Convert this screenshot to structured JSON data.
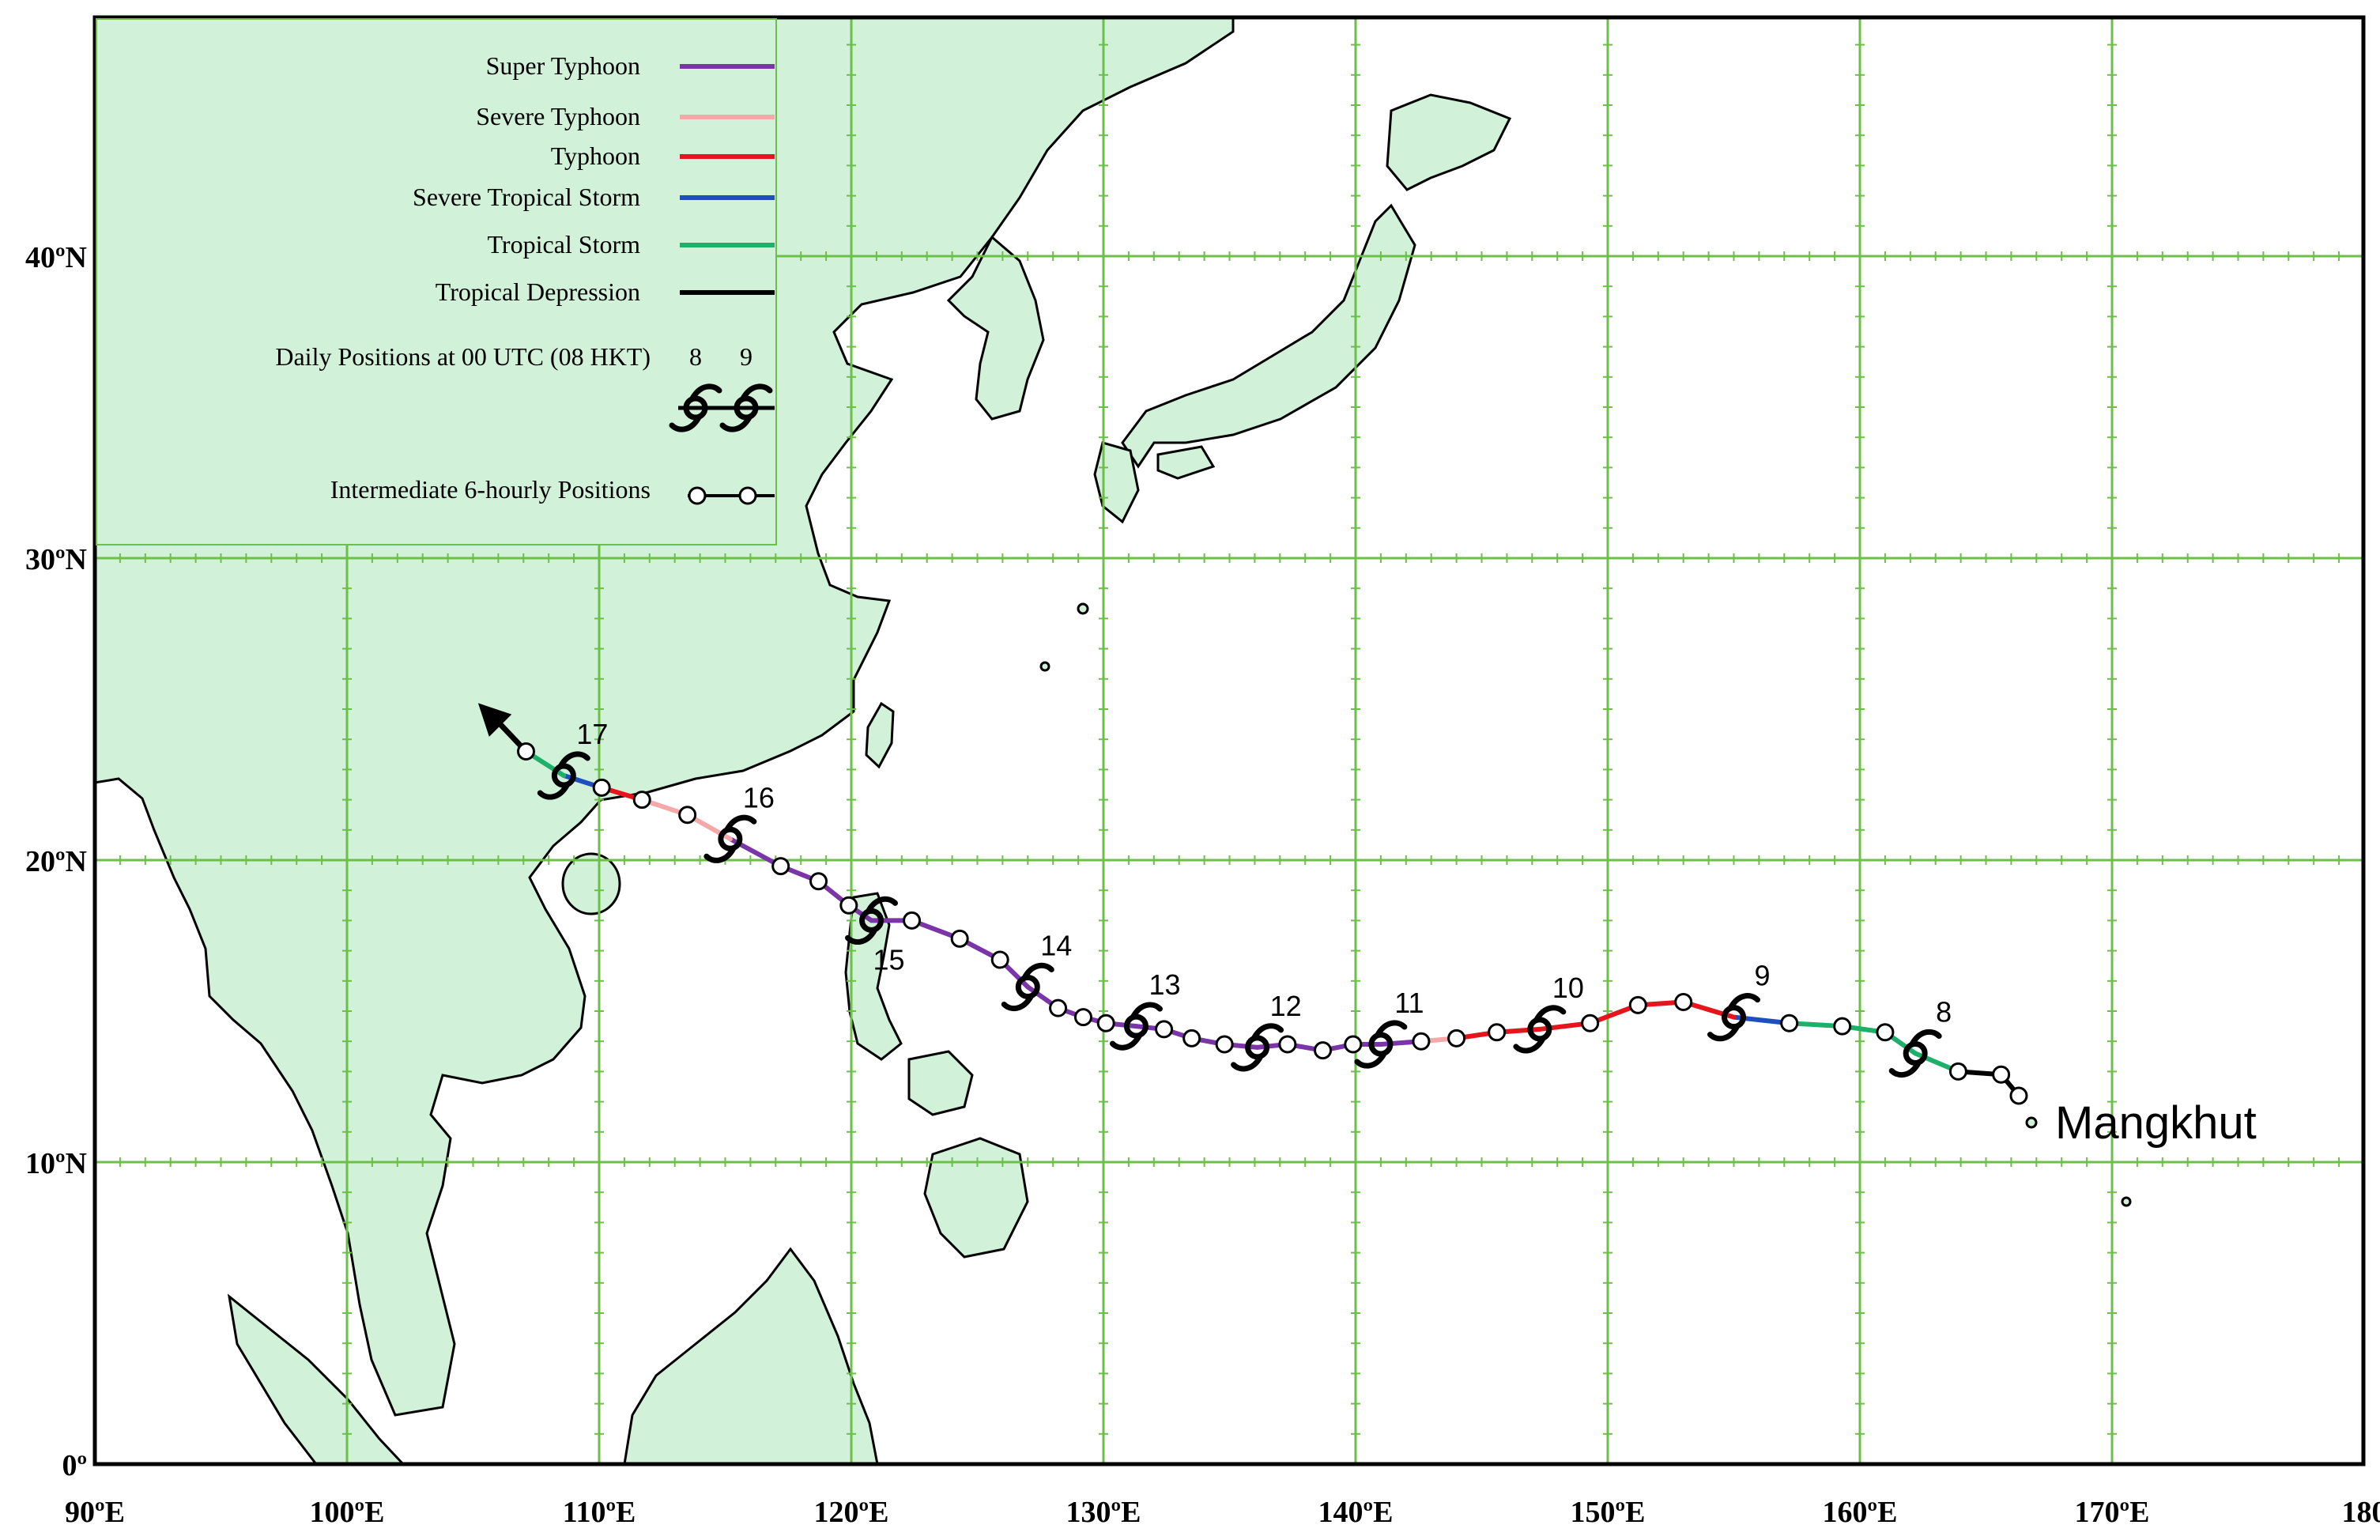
{
  "legend": {
    "items": [
      {
        "label": "Super Typhoon",
        "color": "#7B35A8"
      },
      {
        "label": "Severe Typhoon",
        "color": "#F4A9A8"
      },
      {
        "label": "Typhoon",
        "color": "#E8141B"
      },
      {
        "label": "Severe Tropical Storm",
        "color": "#1F4FBF"
      },
      {
        "label": "Tropical Storm",
        "color": "#1CB06A"
      },
      {
        "label": "Tropical Depression",
        "color": "#000000"
      }
    ],
    "daily_label": "Daily Positions at 00 UTC (08 HKT)",
    "daily_sample_1": "8",
    "daily_sample_2": "9",
    "intermediate_label": "Intermediate 6-hourly Positions"
  },
  "axes": {
    "lon_labels": [
      "90ºE",
      "100ºE",
      "110ºE",
      "120ºE",
      "130ºE",
      "140ºE",
      "150ºE",
      "160ºE",
      "170ºE",
      "180"
    ],
    "lat_labels": [
      "0º",
      "10ºN",
      "20ºN",
      "30ºN",
      "40ºN"
    ]
  },
  "storm_name": "Mangkhut",
  "track": {
    "points": [
      {
        "lon": 166.3,
        "lat": 12.2,
        "cat": "Tropical Depression"
      },
      {
        "lon": 165.6,
        "lat": 12.9,
        "cat": "Tropical Depression"
      },
      {
        "lon": 163.9,
        "lat": 13.0,
        "cat": "Tropical Depression"
      },
      {
        "lon": 162.2,
        "lat": 13.6,
        "cat": "Tropical Storm",
        "day": "8"
      },
      {
        "lon": 161.0,
        "lat": 14.3,
        "cat": "Tropical Storm"
      },
      {
        "lon": 159.3,
        "lat": 14.5,
        "cat": "Tropical Storm"
      },
      {
        "lon": 157.2,
        "lat": 14.6,
        "cat": "Tropical Storm"
      },
      {
        "lon": 155.0,
        "lat": 14.8,
        "cat": "Severe Tropical Storm",
        "day": "9"
      },
      {
        "lon": 153.0,
        "lat": 15.3,
        "cat": "Typhoon"
      },
      {
        "lon": 151.2,
        "lat": 15.2,
        "cat": "Typhoon"
      },
      {
        "lon": 149.3,
        "lat": 14.6,
        "cat": "Typhoon"
      },
      {
        "lon": 147.3,
        "lat": 14.4,
        "cat": "Typhoon",
        "day": "10"
      },
      {
        "lon": 145.6,
        "lat": 14.3,
        "cat": "Typhoon"
      },
      {
        "lon": 144.0,
        "lat": 14.1,
        "cat": "Typhoon"
      },
      {
        "lon": 142.6,
        "lat": 14.0,
        "cat": "Severe Typhoon"
      },
      {
        "lon": 141.0,
        "lat": 13.9,
        "cat": "Super Typhoon",
        "day": "11"
      },
      {
        "lon": 139.9,
        "lat": 13.9,
        "cat": "Super Typhoon"
      },
      {
        "lon": 138.7,
        "lat": 13.7,
        "cat": "Super Typhoon"
      },
      {
        "lon": 137.3,
        "lat": 13.9,
        "cat": "Super Typhoon"
      },
      {
        "lon": 136.1,
        "lat": 13.8,
        "cat": "Super Typhoon",
        "day": "12"
      },
      {
        "lon": 134.8,
        "lat": 13.9,
        "cat": "Super Typhoon"
      },
      {
        "lon": 133.5,
        "lat": 14.1,
        "cat": "Super Typhoon"
      },
      {
        "lon": 132.4,
        "lat": 14.4,
        "cat": "Super Typhoon"
      },
      {
        "lon": 131.3,
        "lat": 14.5,
        "cat": "Super Typhoon",
        "day": "13"
      },
      {
        "lon": 130.1,
        "lat": 14.6,
        "cat": "Super Typhoon"
      },
      {
        "lon": 129.2,
        "lat": 14.8,
        "cat": "Super Typhoon"
      },
      {
        "lon": 128.2,
        "lat": 15.1,
        "cat": "Super Typhoon"
      },
      {
        "lon": 127.0,
        "lat": 15.8,
        "cat": "Super Typhoon",
        "day": "14"
      },
      {
        "lon": 125.9,
        "lat": 16.7,
        "cat": "Super Typhoon"
      },
      {
        "lon": 124.3,
        "lat": 17.4,
        "cat": "Super Typhoon"
      },
      {
        "lon": 122.4,
        "lat": 18.0,
        "cat": "Super Typhoon"
      },
      {
        "lon": 120.8,
        "lat": 18.0,
        "cat": "Super Typhoon",
        "day": "15"
      },
      {
        "lon": 119.9,
        "lat": 18.5,
        "cat": "Super Typhoon"
      },
      {
        "lon": 118.7,
        "lat": 19.3,
        "cat": "Super Typhoon"
      },
      {
        "lon": 117.2,
        "lat": 19.8,
        "cat": "Super Typhoon"
      },
      {
        "lon": 115.2,
        "lat": 20.7,
        "cat": "Super Typhoon",
        "day": "16"
      },
      {
        "lon": 113.5,
        "lat": 21.5,
        "cat": "Severe Typhoon"
      },
      {
        "lon": 111.7,
        "lat": 22.0,
        "cat": "Severe Typhoon"
      },
      {
        "lon": 110.1,
        "lat": 22.4,
        "cat": "Typhoon"
      },
      {
        "lon": 108.6,
        "lat": 22.8,
        "cat": "Severe Tropical Storm",
        "day": "17"
      },
      {
        "lon": 107.1,
        "lat": 23.6,
        "cat": "Tropical Storm"
      }
    ],
    "arrow_to": {
      "lon": 105.2,
      "lat": 25.2
    }
  },
  "colors": {
    "land": "#d2f1d9",
    "coast": "#000000",
    "grid": "#6cbf49",
    "sea": "#ffffff"
  }
}
